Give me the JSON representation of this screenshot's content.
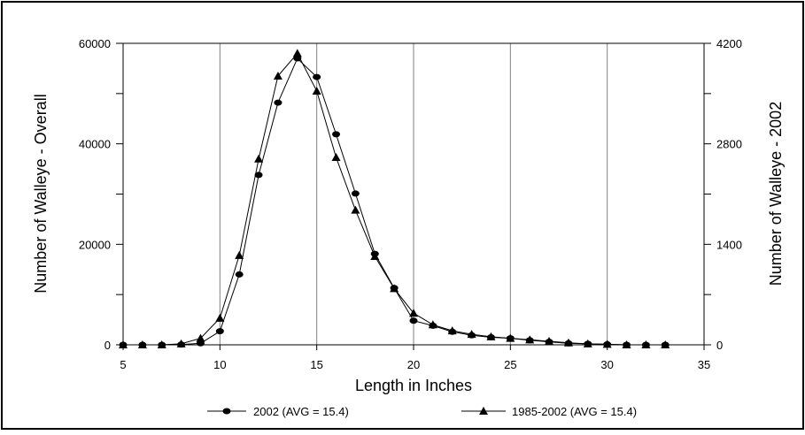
{
  "chart_data": {
    "type": "line",
    "xlabel": "Length in Inches",
    "ylabel_left": "Number of Walleye - Overall",
    "ylabel_right": "Number of Walleye - 2002",
    "xlim": [
      5,
      35
    ],
    "ylim_left": [
      0,
      60000
    ],
    "ylim_right": [
      0,
      4200
    ],
    "x_ticks": [
      5,
      10,
      15,
      20,
      25,
      30,
      35
    ],
    "y_ticks_left": [
      0,
      20000,
      40000,
      60000
    ],
    "y_ticks_right": [
      0,
      1400,
      2800,
      4200
    ],
    "grid": "vertical",
    "legend_position": "bottom",
    "series": [
      {
        "name": "2002 (AVG = 15.4)",
        "marker": "circle",
        "x": [
          5,
          6,
          7,
          8,
          9,
          10,
          11,
          12,
          13,
          14,
          15,
          16,
          17,
          18,
          19,
          20,
          21,
          22,
          23,
          24,
          25,
          26,
          27,
          28,
          29,
          30,
          31,
          32,
          33
        ],
        "y": [
          0,
          0,
          0,
          50,
          300,
          2700,
          14000,
          33800,
          48200,
          57000,
          53300,
          41900,
          30100,
          18100,
          11300,
          4800,
          3800,
          2600,
          1900,
          1500,
          1300,
          900,
          600,
          300,
          200,
          100,
          0,
          0,
          0
        ]
      },
      {
        "name": "1985-2002 (AVG = 15.4)",
        "marker": "triangle",
        "x": [
          5,
          6,
          7,
          8,
          9,
          10,
          11,
          12,
          13,
          14,
          15,
          16,
          17,
          18,
          19,
          20,
          21,
          22,
          23,
          24,
          25,
          26,
          27,
          28,
          29,
          30,
          31,
          32,
          33
        ],
        "y": [
          0,
          0,
          0,
          200,
          1300,
          5300,
          17800,
          37000,
          53500,
          58000,
          50500,
          37300,
          26800,
          17600,
          11200,
          6300,
          4000,
          2800,
          2100,
          1600,
          1300,
          1000,
          700,
          400,
          200,
          100,
          0,
          0,
          0
        ]
      }
    ]
  },
  "colors": {
    "line": "#000000",
    "grid": "#808080",
    "background": "#ffffff"
  }
}
